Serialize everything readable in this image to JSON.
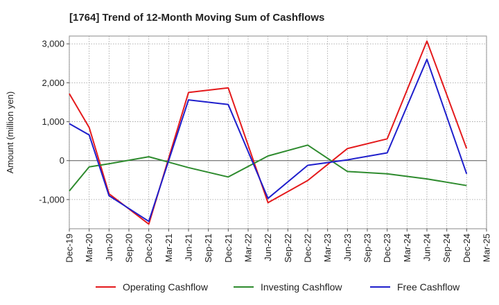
{
  "chart_data": {
    "type": "line",
    "title": "[1764]  Trend of 12-Month Moving Sum of Cashflows",
    "ylabel": "Amount (million yen)",
    "xlabel": "",
    "ylim": [
      -1750,
      3200
    ],
    "yticks": [
      -1000,
      0,
      1000,
      2000,
      3000
    ],
    "ytick_labels": [
      "-1,000",
      "0",
      "1,000",
      "2,000",
      "3,000"
    ],
    "grid": true,
    "legend_position": "bottom",
    "categories": [
      "Dec-19",
      "Mar-20",
      "Jun-20",
      "Sep-20",
      "Dec-20",
      "Mar-21",
      "Jun-21",
      "Sep-21",
      "Dec-21",
      "Mar-22",
      "Jun-22",
      "Sep-22",
      "Dec-22",
      "Mar-23",
      "Jun-23",
      "Sep-23",
      "Dec-23",
      "Mar-24",
      "Jun-24",
      "Sep-24",
      "Dec-24",
      "Mar-25"
    ],
    "series": [
      {
        "name": "Operating Cashflow",
        "color": "#e41a1c",
        "values": [
          1720,
          850,
          -850,
          null,
          -1630,
          null,
          1750,
          null,
          1870,
          null,
          -1080,
          null,
          -510,
          null,
          310,
          null,
          560,
          null,
          3070,
          null,
          310,
          null
        ]
      },
      {
        "name": "Investing Cashflow",
        "color": "#2e8b2e",
        "values": [
          -780,
          -160,
          -80,
          null,
          100,
          null,
          -180,
          null,
          -420,
          null,
          120,
          null,
          400,
          null,
          -280,
          null,
          -340,
          null,
          -470,
          null,
          -640,
          null
        ]
      },
      {
        "name": "Free Cashflow",
        "color": "#1f1fcc",
        "values": [
          950,
          660,
          -900,
          null,
          -1560,
          null,
          1560,
          null,
          1440,
          null,
          -970,
          null,
          -120,
          null,
          20,
          null,
          200,
          null,
          2600,
          null,
          -340,
          null
        ]
      }
    ]
  }
}
